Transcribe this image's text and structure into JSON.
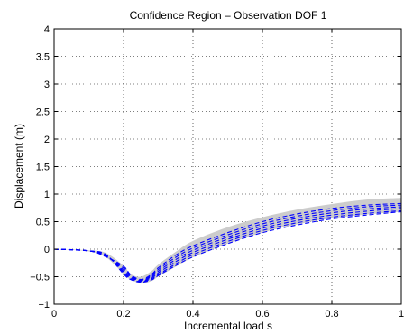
{
  "chart_data": {
    "type": "line",
    "title": "Confidence Region  – Observation DOF 1",
    "xlabel": "Incremental load s",
    "ylabel": "Displacement (m)",
    "xlim": [
      0,
      1
    ],
    "ylim": [
      -1,
      4
    ],
    "xticks": [
      0,
      0.2,
      0.4,
      0.6,
      0.8,
      1
    ],
    "xtick_labels": [
      "0",
      "0.2",
      "0.4",
      "0.6",
      "0.8",
      "1"
    ],
    "yticks": [
      -1,
      -0.5,
      0,
      0.5,
      1,
      1.5,
      2,
      2.5,
      3,
      3.5,
      4
    ],
    "ytick_labels": [
      "−1",
      "−0.5",
      "0",
      "0.5",
      "1",
      "1.5",
      "2",
      "2.5",
      "3",
      "3.5",
      "4"
    ],
    "grid": true,
    "band": {
      "name": "Confidence region",
      "color": "#cccccc",
      "x": [
        0,
        0.1,
        0.15,
        0.2,
        0.22,
        0.25,
        0.28,
        0.3,
        0.35,
        0.4,
        0.5,
        0.6,
        0.7,
        0.8,
        0.9,
        1
      ],
      "lower": [
        0,
        -0.04,
        -0.15,
        -0.45,
        -0.55,
        -0.62,
        -0.58,
        -0.5,
        -0.32,
        -0.15,
        0.1,
        0.3,
        0.45,
        0.56,
        0.63,
        0.68
      ],
      "upper": [
        0,
        -0.02,
        -0.07,
        -0.3,
        -0.45,
        -0.5,
        -0.4,
        -0.28,
        -0.05,
        0.15,
        0.4,
        0.58,
        0.72,
        0.82,
        0.9,
        0.93
      ]
    },
    "series_color": "#0000ff",
    "x": [
      0,
      0.1,
      0.15,
      0.2,
      0.22,
      0.25,
      0.28,
      0.3,
      0.35,
      0.4,
      0.5,
      0.6,
      0.7,
      0.8,
      0.9,
      1
    ],
    "series": [
      {
        "values": [
          0,
          -0.03,
          -0.1,
          -0.45,
          -0.55,
          -0.6,
          -0.56,
          -0.48,
          -0.3,
          -0.14,
          0.1,
          0.3,
          0.44,
          0.55,
          0.62,
          0.68
        ]
      },
      {
        "values": [
          0,
          -0.03,
          -0.11,
          -0.42,
          -0.54,
          -0.59,
          -0.54,
          -0.46,
          -0.27,
          -0.1,
          0.14,
          0.34,
          0.48,
          0.58,
          0.65,
          0.7
        ]
      },
      {
        "values": [
          0,
          -0.03,
          -0.12,
          -0.4,
          -0.52,
          -0.58,
          -0.52,
          -0.43,
          -0.23,
          -0.06,
          0.18,
          0.38,
          0.52,
          0.62,
          0.69,
          0.74
        ]
      },
      {
        "values": [
          0,
          -0.03,
          -0.13,
          -0.37,
          -0.5,
          -0.57,
          -0.5,
          -0.4,
          -0.19,
          -0.02,
          0.22,
          0.42,
          0.56,
          0.66,
          0.73,
          0.77
        ]
      },
      {
        "values": [
          0,
          -0.03,
          -0.13,
          -0.34,
          -0.48,
          -0.56,
          -0.48,
          -0.37,
          -0.15,
          0.02,
          0.26,
          0.46,
          0.6,
          0.7,
          0.77,
          0.8
        ]
      },
      {
        "values": [
          0,
          -0.03,
          -0.14,
          -0.31,
          -0.46,
          -0.55,
          -0.46,
          -0.34,
          -0.11,
          0.06,
          0.3,
          0.5,
          0.64,
          0.74,
          0.8,
          0.83
        ]
      }
    ]
  }
}
